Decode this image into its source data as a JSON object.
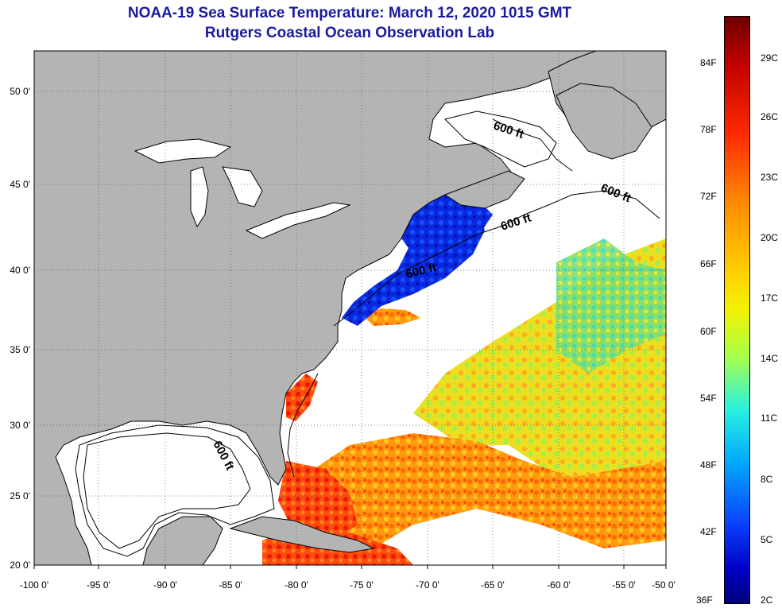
{
  "title": "NOAA-19 Sea Surface Temperature:  March 12, 2020 1015 GMT",
  "subtitle": "Rutgers Coastal Ocean Observation Lab",
  "map": {
    "x_ticks": [
      "-100 0'",
      "-95 0'",
      "-90 0'",
      "-85 0'",
      "-80 0'",
      "-75 0'",
      "-70 0'",
      "-65 0'",
      "-60 0'",
      "-55 0'",
      "-50 0'"
    ],
    "y_ticks": [
      "50 0'",
      "45 0'",
      "40 0'",
      "35 0'",
      "30 0'",
      "25 0'",
      "20 0'"
    ],
    "isobath_labels": [
      "600 ft",
      "600 ft",
      "600 ft",
      "600 ft",
      "600 ft"
    ],
    "land_color": "#b4b4b4",
    "no_data_color": "#ffffff"
  },
  "colorbar": {
    "fahrenheit": [
      "84F",
      "78F",
      "72F",
      "66F",
      "60F",
      "54F",
      "48F",
      "42F",
      "36F"
    ],
    "celsius": [
      "29C",
      "26C",
      "23C",
      "20C",
      "17C",
      "14C",
      "11C",
      "8C",
      "5C",
      "2C"
    ]
  }
}
